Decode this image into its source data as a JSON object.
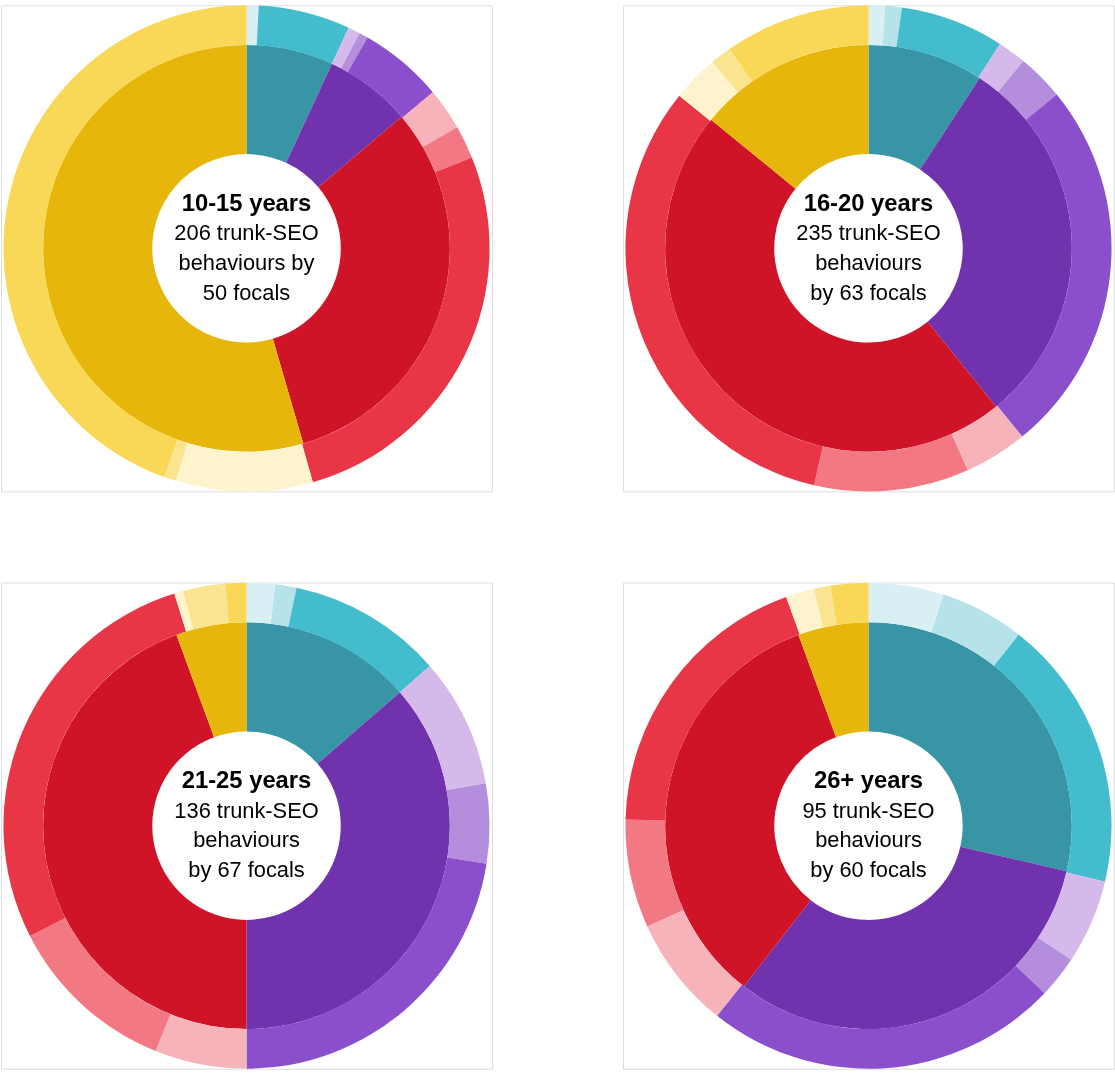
{
  "chart_data": [
    {
      "type": "donut",
      "title": "10-15 years",
      "subtitle": [
        "206 trunk-SEO",
        "behaviours by",
        "50 focals"
      ],
      "series": [
        {
          "values": [
            6.9,
            6.9,
            31.7,
            54.5
          ],
          "colors": [
            "#3795a5",
            "#7033ad",
            "#cf1428",
            "#e6b70a"
          ]
        },
        {
          "values": [
            0.8,
            6.1,
            0.8,
            0.6,
            5.6,
            2.8,
            2.2,
            26.7,
            9.1,
            0.8,
            44.5
          ],
          "colors": [
            "#d8f0f3",
            "#43bccd",
            "#d4b9ea",
            "#b48ddd",
            "#8b4fcc",
            "#f7b3ba",
            "#f27884",
            "#e83646",
            "#fdf3cc",
            "#fbe48f",
            "#f9d858"
          ]
        }
      ]
    },
    {
      "type": "donut",
      "title": "16-20 years",
      "subtitle": [
        "235 trunk-SEO",
        "behaviours",
        "by 63 focals"
      ],
      "series": [
        {
          "values": [
            9.2,
            30,
            46.7,
            14.1
          ],
          "colors": [
            "#3795a5",
            "#7033ad",
            "#cf1428",
            "#e6b70a"
          ]
        },
        {
          "values": [
            1.1,
            1.1,
            6.9,
            1.9,
            3.1,
            25,
            4.2,
            10.3,
            32.2,
            3.1,
            1.4,
            9.7
          ],
          "colors": [
            "#d8f0f3",
            "#b5e3e9",
            "#43bccd",
            "#d4b9ea",
            "#b48ddd",
            "#8b4fcc",
            "#f7b3ba",
            "#f27884",
            "#e83646",
            "#fdf3cc",
            "#fbe48f",
            "#f9d858"
          ]
        }
      ]
    },
    {
      "type": "donut",
      "title": "21-25 years",
      "subtitle": [
        "136 trunk-SEO",
        "behaviours",
        "by 67 focals"
      ],
      "series": [
        {
          "values": [
            13.6,
            36.4,
            44.4,
            5.6
          ],
          "colors": [
            "#3795a5",
            "#7033ad",
            "#cf1428",
            "#e6b70a"
          ]
        },
        {
          "values": [
            1.9,
            1.4,
            10.3,
            8.6,
            5.3,
            22.5,
            6.1,
            11.4,
            27.7,
            0.6,
            2.8,
            1.4
          ],
          "colors": [
            "#d8f0f3",
            "#b5e3e9",
            "#43bccd",
            "#d4b9ea",
            "#b48ddd",
            "#8b4fcc",
            "#f7b3ba",
            "#f27884",
            "#e83646",
            "#fdf3cc",
            "#fbe48f",
            "#f9d858"
          ]
        }
      ]
    },
    {
      "type": "donut",
      "title": "26+ years",
      "subtitle": [
        "95 trunk-SEO",
        "behaviours",
        "by 60 focals"
      ],
      "series": [
        {
          "values": [
            28.6,
            31.9,
            33.9,
            5.6
          ],
          "colors": [
            "#3795a5",
            "#7033ad",
            "#cf1428",
            "#e6b70a"
          ]
        },
        {
          "values": [
            5,
            5.6,
            18.1,
            5.6,
            2.8,
            23.6,
            7.5,
            7.2,
            19.1,
            1.9,
            1.1,
            2.5
          ],
          "colors": [
            "#d8f0f3",
            "#b5e3e9",
            "#43bccd",
            "#d4b9ea",
            "#b48ddd",
            "#8b4fcc",
            "#f7b3ba",
            "#f27884",
            "#e83646",
            "#fdf3cc",
            "#fbe48f",
            "#f9d858"
          ]
        }
      ]
    }
  ]
}
